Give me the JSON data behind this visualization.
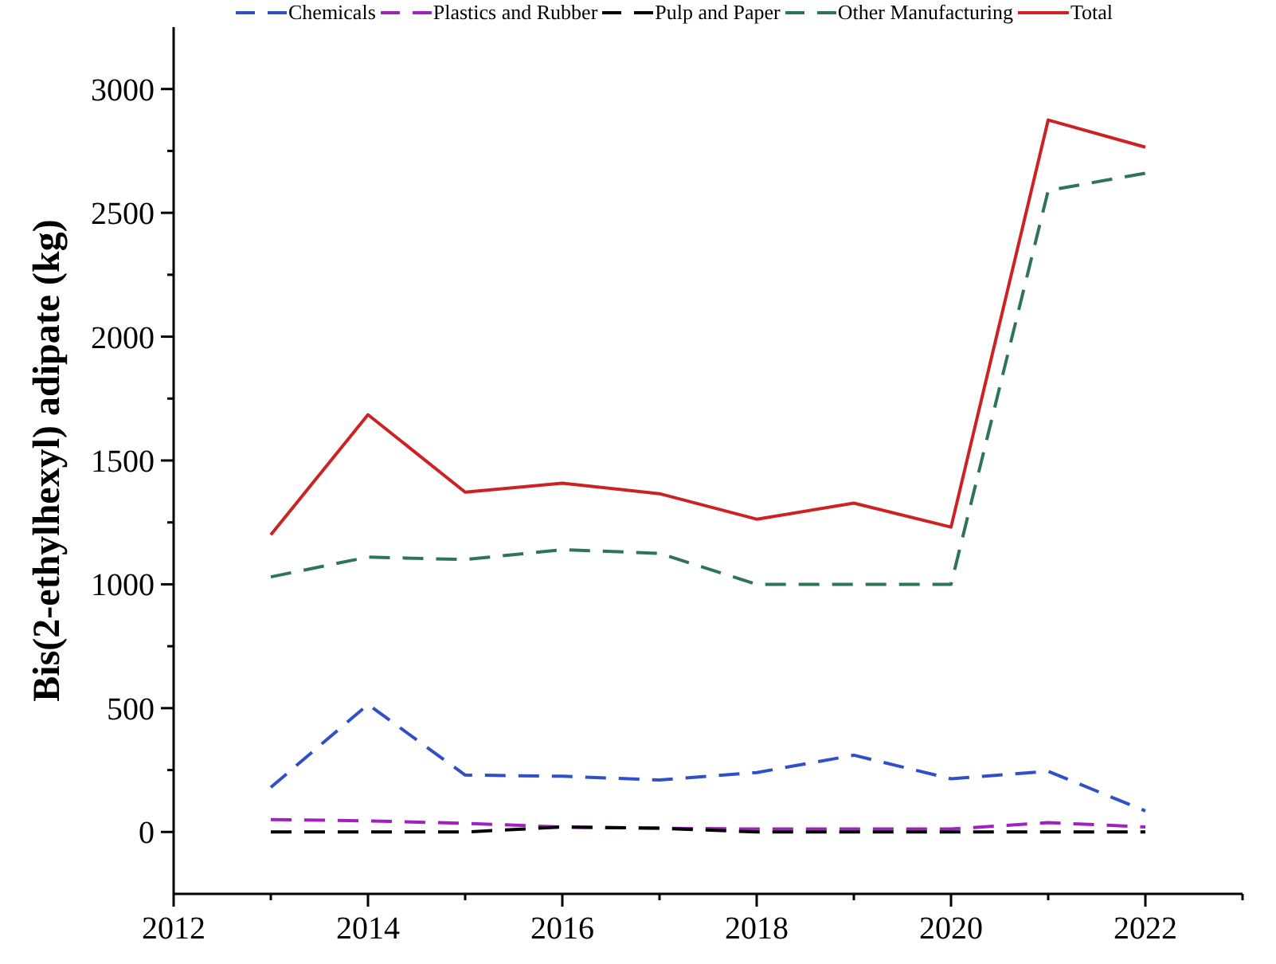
{
  "chart_data": {
    "type": "line",
    "ylabel": "Bis(2-ethylhexyl) adipate (kg)",
    "x": [
      2013,
      2014,
      2015,
      2016,
      2017,
      2018,
      2019,
      2020,
      2021,
      2022
    ],
    "series": [
      {
        "name": "Chemicals",
        "color": "#3050c8",
        "line_style": "dashed",
        "values": [
          180,
          515,
          230,
          225,
          210,
          240,
          310,
          215,
          245,
          85
        ]
      },
      {
        "name": "Plastics and Rubber",
        "color": "#a020c0",
        "line_style": "dashed",
        "values": [
          50,
          45,
          35,
          20,
          15,
          12,
          12,
          12,
          38,
          20
        ]
      },
      {
        "name": "Pulp and Paper",
        "color": "#000000",
        "line_style": "dashed",
        "values": [
          0,
          0,
          0,
          20,
          15,
          0,
          0,
          0,
          0,
          0
        ]
      },
      {
        "name": "Other Manufacturing",
        "color": "#2e7558",
        "line_style": "dashed",
        "values": [
          1030,
          1110,
          1100,
          1140,
          1125,
          1000,
          1000,
          1000,
          2590,
          2660
        ]
      },
      {
        "name": "Total",
        "color": "#cc2222",
        "line_style": "solid",
        "values": [
          1200,
          1685,
          1372,
          1408,
          1366,
          1263,
          1328,
          1231,
          2875,
          2765
        ]
      }
    ],
    "xlim": [
      2012,
      2023
    ],
    "xticks": [
      2012,
      {
        "value": 2013,
        "label": null
      },
      2014,
      {
        "value": 2015,
        "label": null
      },
      2016,
      {
        "value": 2017,
        "label": null
      },
      2018,
      {
        "value": 2019,
        "label": null
      },
      2020,
      {
        "value": 2021,
        "label": null
      },
      2022,
      {
        "value": 2023,
        "label": null
      }
    ],
    "ylim": [
      -250,
      3250
    ],
    "yticks": [
      0,
      {
        "value": 250,
        "label": null
      },
      500,
      {
        "value": 750,
        "label": null
      },
      1000,
      {
        "value": 1250,
        "label": null
      },
      1500,
      {
        "value": 1750,
        "label": null
      },
      2000,
      {
        "value": 2250,
        "label": null
      },
      2500,
      {
        "value": 2750,
        "label": null
      },
      3000
    ],
    "legend": "top"
  }
}
